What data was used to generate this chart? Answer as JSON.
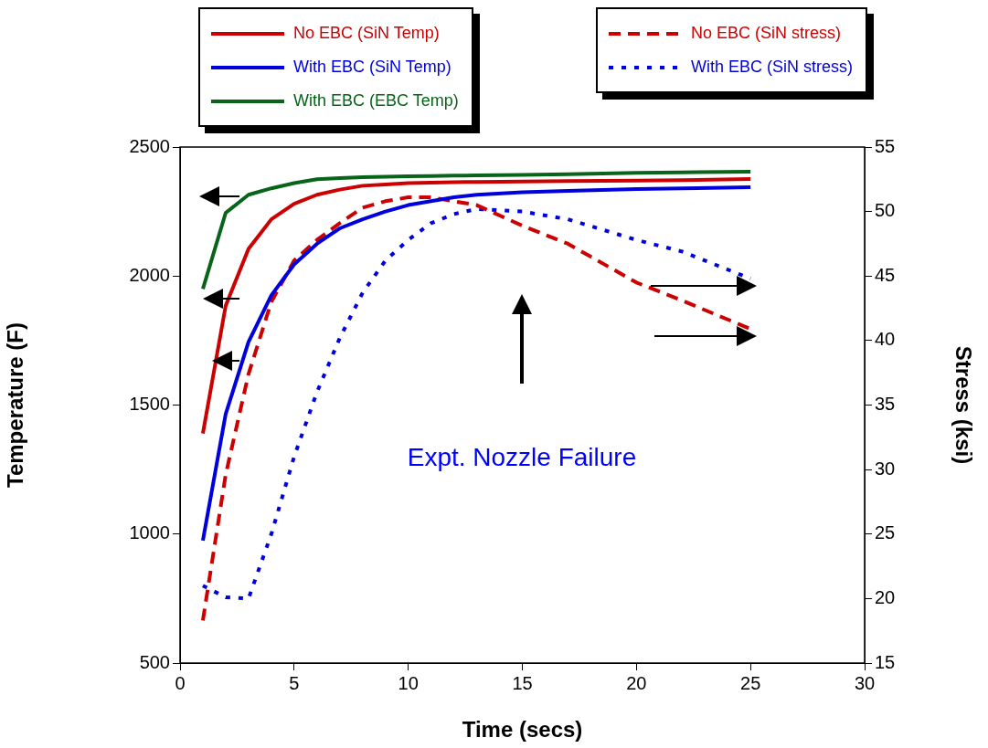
{
  "chart_data": {
    "type": "line",
    "xlabel": "Time (secs)",
    "ylabel": "Temperature (F)",
    "y2label": "Stress (ksi)",
    "x": [
      1,
      2,
      3,
      4,
      5,
      6,
      7,
      8,
      9,
      10,
      11,
      12,
      13,
      15,
      17,
      20,
      22,
      25
    ],
    "series": [
      {
        "name": "No EBC (SiN Temp)",
        "color": "#cc0000",
        "line_style": "solid",
        "values": [
          1390,
          1885,
          2105,
          2220,
          2280,
          2315,
          2335,
          2350,
          2355,
          2360,
          2362,
          2364,
          2365,
          2366,
          2368,
          2370,
          2372,
          2376
        ]
      },
      {
        "name": "With EBC (SiN Temp)",
        "color": "#0000dd",
        "line_style": "solid",
        "values": [
          975,
          1465,
          1745,
          1925,
          2045,
          2125,
          2185,
          2220,
          2250,
          2275,
          2290,
          2305,
          2315,
          2325,
          2330,
          2337,
          2340,
          2344
        ]
      },
      {
        "name": "With EBC (EBC Temp)",
        "color": "#086418",
        "line_style": "solid",
        "values": [
          1950,
          2245,
          2315,
          2340,
          2360,
          2375,
          2380,
          2383,
          2385,
          2387,
          2388,
          2389,
          2390,
          2392,
          2395,
          2400,
          2402,
          2404
        ]
      },
      {
        "name": "No EBC (SiN stress)",
        "color": "#cc0000",
        "line_style": "dashed",
        "axis": "y2",
        "values": [
          18.3,
          29.6,
          37.4,
          43.0,
          46.2,
          47.8,
          49.1,
          50.3,
          50.8,
          51.1,
          51.1,
          50.8,
          50.5,
          48.9,
          47.5,
          44.5,
          43.1,
          40.9
        ]
      },
      {
        "name": "With EBC (SiN stress)",
        "color": "#0000dd",
        "line_style": "dotted",
        "axis": "y2",
        "values": [
          21.0,
          20.1,
          20.0,
          25.0,
          31.0,
          36.0,
          40.2,
          43.7,
          46.2,
          47.8,
          49.1,
          49.8,
          50.2,
          50.0,
          49.4,
          47.8,
          46.9,
          44.8
        ]
      }
    ],
    "xlim": [
      0,
      30
    ],
    "xticks": [
      0,
      5,
      10,
      15,
      20,
      25,
      30
    ],
    "ylim": [
      500,
      2500
    ],
    "yticks": [
      500,
      1000,
      1500,
      2000,
      2500
    ],
    "y2lim": [
      15,
      55
    ],
    "y2ticks": [
      15,
      20,
      25,
      30,
      35,
      40,
      45,
      50,
      55
    ],
    "annotations": [
      "Expt. Nozzle Failure"
    ],
    "grid": false,
    "legend": "top",
    "marker": "none"
  }
}
